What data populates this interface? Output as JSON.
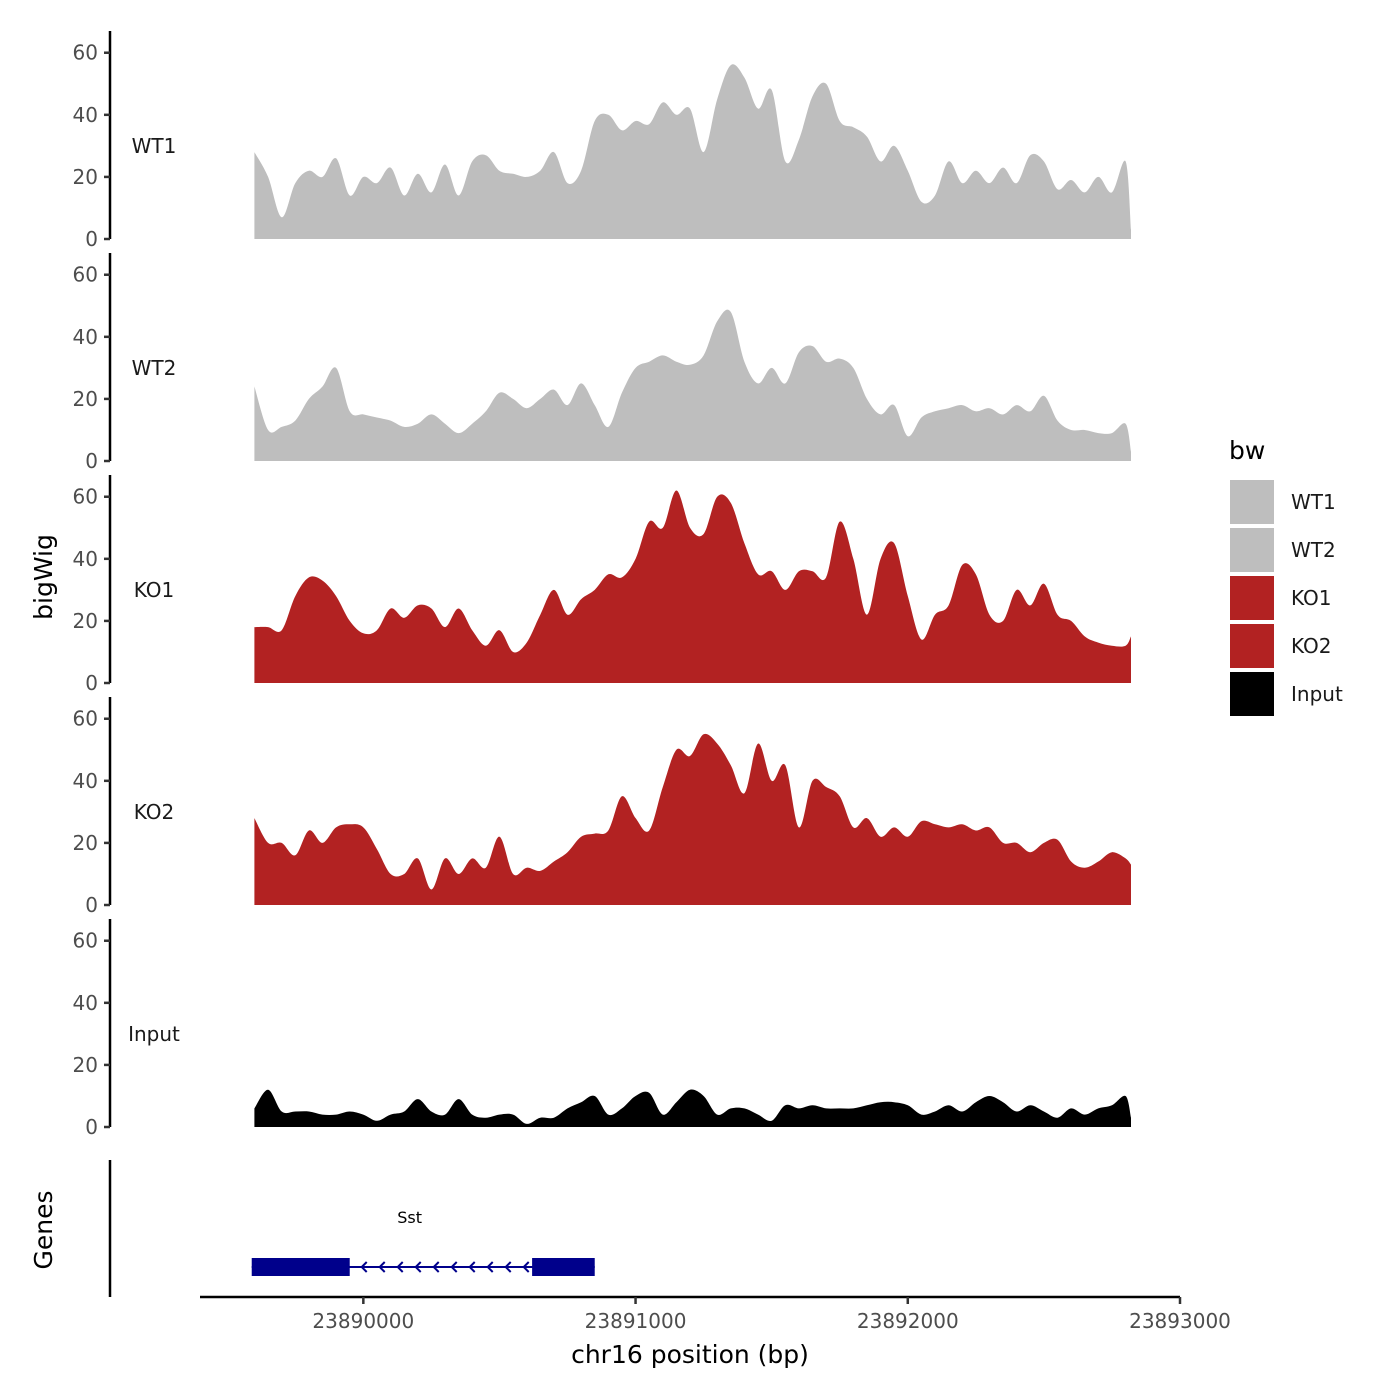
{
  "chart_data": {
    "type": "area",
    "ylabel": "bigWig",
    "xlabel": "chr16 position (bp)",
    "genes_label": "Genes",
    "xlim": [
      23889400,
      23893000
    ],
    "xticks": [
      23890000,
      23891000,
      23892000,
      23893000
    ],
    "xtick_labels": [
      "23890000",
      "23891000",
      "23892000",
      "23893000"
    ],
    "ylim": [
      0,
      67
    ],
    "yticks": [
      0,
      20,
      40,
      60
    ],
    "ytick_labels": [
      "0",
      "20",
      "40",
      "60"
    ],
    "x": [
      23889600,
      23889650,
      23889700,
      23889750,
      23889800,
      23889850,
      23889900,
      23889950,
      23890000,
      23890050,
      23890100,
      23890150,
      23890200,
      23890250,
      23890300,
      23890350,
      23890400,
      23890450,
      23890500,
      23890550,
      23890600,
      23890650,
      23890700,
      23890750,
      23890800,
      23890850,
      23890900,
      23890950,
      23891000,
      23891050,
      23891100,
      23891150,
      23891200,
      23891250,
      23891300,
      23891350,
      23891400,
      23891450,
      23891500,
      23891550,
      23891600,
      23891650,
      23891700,
      23891750,
      23891800,
      23891850,
      23891900,
      23891950,
      23892000,
      23892050,
      23892100,
      23892150,
      23892200,
      23892250,
      23892300,
      23892350,
      23892400,
      23892450,
      23892500,
      23892550,
      23892600,
      23892650,
      23892700,
      23892750,
      23892800,
      23892820
    ],
    "series": [
      {
        "name": "WT1",
        "color": "#bebebe",
        "values": [
          28,
          20,
          7,
          18,
          22,
          20,
          26,
          14,
          20,
          18,
          23,
          14,
          21,
          15,
          24,
          14,
          25,
          27,
          22,
          21,
          20,
          22,
          28,
          18,
          22,
          38,
          40,
          35,
          38,
          37,
          44,
          40,
          42,
          28,
          45,
          56,
          52,
          42,
          48,
          25,
          32,
          46,
          50,
          38,
          36,
          33,
          25,
          30,
          22,
          12,
          14,
          25,
          18,
          22,
          18,
          23,
          18,
          27,
          25,
          16,
          19,
          15,
          20,
          15,
          25,
          3
        ]
      },
      {
        "name": "WT2",
        "color": "#bebebe",
        "values": [
          24,
          10,
          11,
          13,
          20,
          24,
          30,
          16,
          15,
          14,
          13,
          11,
          12,
          15,
          12,
          9,
          12,
          16,
          22,
          20,
          17,
          20,
          23,
          18,
          25,
          18,
          11,
          22,
          30,
          32,
          34,
          32,
          31,
          34,
          45,
          48,
          32,
          25,
          30,
          25,
          35,
          37,
          32,
          33,
          30,
          20,
          15,
          18,
          8,
          14,
          16,
          17,
          18,
          16,
          17,
          15,
          18,
          16,
          21,
          13,
          10,
          10,
          9,
          9,
          12,
          3
        ]
      },
      {
        "name": "KO1",
        "color": "#b22222",
        "values": [
          18,
          18,
          17,
          28,
          34,
          33,
          28,
          20,
          16,
          17,
          24,
          21,
          25,
          24,
          18,
          24,
          17,
          12,
          17,
          10,
          13,
          22,
          30,
          22,
          27,
          30,
          35,
          34,
          40,
          52,
          50,
          62,
          50,
          48,
          60,
          58,
          45,
          35,
          36,
          30,
          36,
          36,
          34,
          52,
          40,
          22,
          40,
          45,
          28,
          14,
          22,
          25,
          38,
          35,
          22,
          20,
          30,
          25,
          32,
          22,
          20,
          15,
          13,
          12,
          12,
          15
        ]
      },
      {
        "name": "KO2",
        "color": "#b22222",
        "values": [
          28,
          20,
          20,
          16,
          24,
          20,
          25,
          26,
          25,
          18,
          10,
          10,
          15,
          5,
          15,
          10,
          15,
          12,
          22,
          10,
          12,
          11,
          14,
          17,
          22,
          23,
          24,
          35,
          28,
          24,
          38,
          50,
          48,
          55,
          52,
          45,
          36,
          52,
          40,
          45,
          25,
          40,
          38,
          35,
          25,
          28,
          22,
          25,
          22,
          27,
          26,
          25,
          26,
          24,
          25,
          20,
          20,
          17,
          20,
          21,
          14,
          12,
          14,
          17,
          15,
          13
        ]
      },
      {
        "name": "Input",
        "color": "#000000",
        "values": [
          6,
          12,
          5,
          5,
          5,
          4,
          4,
          5,
          4,
          2,
          4,
          5,
          9,
          5,
          4,
          9,
          4,
          3,
          4,
          4,
          1,
          3,
          3,
          6,
          8,
          10,
          4,
          6,
          10,
          11,
          4,
          8,
          12,
          10,
          4,
          6,
          6,
          4,
          2,
          7,
          6,
          7,
          6,
          6,
          6,
          7,
          8,
          8,
          7,
          4,
          5,
          7,
          5,
          8,
          10,
          8,
          5,
          7,
          5,
          3,
          6,
          4,
          6,
          7,
          10,
          3
        ]
      }
    ],
    "legend": {
      "title": "bw",
      "placement": "right",
      "entries": [
        {
          "label": "WT1",
          "color": "#bebebe"
        },
        {
          "label": "WT2",
          "color": "#bebebe"
        },
        {
          "label": "KO1",
          "color": "#b22222"
        },
        {
          "label": "KO2",
          "color": "#b22222"
        },
        {
          "label": "Input",
          "color": "#000000"
        }
      ]
    },
    "gene": {
      "name": "Sst",
      "color": "#00008b",
      "start": 23889590,
      "end": 23890850,
      "strand": "-",
      "exons": [
        [
          23889590,
          23889950
        ],
        [
          23890620,
          23890850
        ]
      ]
    }
  }
}
